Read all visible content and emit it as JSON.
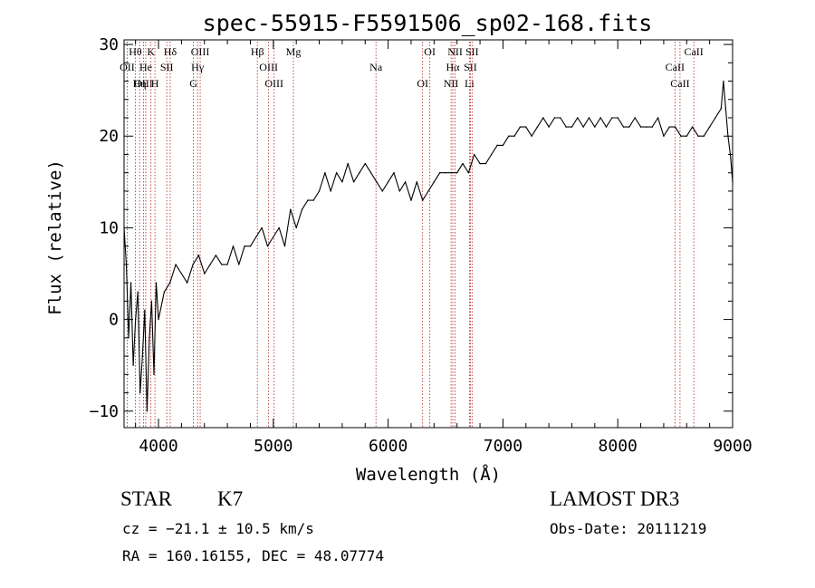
{
  "chart_data": {
    "type": "line",
    "title": "spec-55915-F5591506_sp02-168.fits",
    "xlabel": "Wavelength (Å)",
    "ylabel": "Flux (relative)",
    "xlim": [
      3700,
      9000
    ],
    "ylim": [
      -11.8,
      30.5
    ],
    "xticks": [
      4000,
      5000,
      6000,
      7000,
      8000,
      9000
    ],
    "yticks": [
      -10,
      0,
      10,
      20,
      30
    ],
    "grid": false,
    "series": [
      {
        "name": "flux",
        "color": "#000000",
        "x": [
          3700,
          3720,
          3740,
          3760,
          3780,
          3800,
          3820,
          3840,
          3860,
          3880,
          3900,
          3920,
          3940,
          3960,
          3980,
          4000,
          4050,
          4100,
          4150,
          4200,
          4250,
          4300,
          4350,
          4400,
          4450,
          4500,
          4550,
          4600,
          4650,
          4700,
          4750,
          4800,
          4850,
          4900,
          4950,
          5000,
          5050,
          5100,
          5150,
          5200,
          5250,
          5300,
          5350,
          5400,
          5450,
          5500,
          5550,
          5600,
          5650,
          5700,
          5750,
          5800,
          5850,
          5900,
          5950,
          6000,
          6050,
          6100,
          6150,
          6200,
          6250,
          6300,
          6350,
          6400,
          6450,
          6500,
          6550,
          6600,
          6650,
          6700,
          6750,
          6800,
          6850,
          6900,
          6950,
          7000,
          7050,
          7100,
          7150,
          7200,
          7250,
          7300,
          7350,
          7400,
          7450,
          7500,
          7550,
          7600,
          7650,
          7700,
          7750,
          7800,
          7850,
          7900,
          7950,
          8000,
          8050,
          8100,
          8150,
          8200,
          8250,
          8300,
          8350,
          8400,
          8450,
          8500,
          8550,
          8600,
          8650,
          8700,
          8750,
          8800,
          8850,
          8900,
          8920,
          8940,
          8960,
          8980,
          9000
        ],
        "values": [
          10,
          6,
          -2,
          4,
          -5,
          0,
          3,
          -8,
          -4,
          1,
          -10,
          -2,
          2,
          -6,
          4,
          0,
          3,
          4,
          6,
          5,
          4,
          6,
          7,
          5,
          6,
          7,
          6,
          6,
          8,
          6,
          8,
          8,
          9,
          10,
          8,
          9,
          10,
          8,
          12,
          10,
          12,
          13,
          13,
          14,
          16,
          14,
          16,
          15,
          17,
          15,
          16,
          17,
          16,
          15,
          14,
          15,
          16,
          14,
          15,
          13,
          15,
          13,
          14,
          15,
          16,
          16,
          16,
          16,
          17,
          16,
          18,
          17,
          17,
          18,
          19,
          19,
          20,
          20,
          21,
          21,
          20,
          21,
          22,
          21,
          22,
          22,
          21,
          21,
          22,
          21,
          22,
          21,
          22,
          21,
          22,
          22,
          21,
          21,
          22,
          21,
          21,
          21,
          22,
          20,
          21,
          21,
          20,
          20,
          21,
          20,
          20,
          21,
          22,
          23,
          26,
          23,
          20,
          18,
          15
        ]
      }
    ],
    "annotations": [
      {
        "label": "Hθ",
        "x": 3798
      },
      {
        "label": "OII",
        "x": 3727
      },
      {
        "label": "OIII",
        "x": 3869
      },
      {
        "label": "K",
        "x": 3934
      },
      {
        "label": "He",
        "x": 3889
      },
      {
        "label": "Hη",
        "x": 3835
      },
      {
        "label": "Hδ",
        "x": 4102
      },
      {
        "label": "SII",
        "x": 4072
      },
      {
        "label": "H",
        "x": 3969
      },
      {
        "label": "OIII",
        "x": 4363
      },
      {
        "label": "Hγ",
        "x": 4340
      },
      {
        "label": "G",
        "x": 4304
      },
      {
        "label": "Hβ",
        "x": 4861
      },
      {
        "label": "OIII",
        "x": 4959
      },
      {
        "label": "OIII",
        "x": 5007
      },
      {
        "label": "Mg",
        "x": 5175
      },
      {
        "label": "Na",
        "x": 5894
      },
      {
        "label": "OI",
        "x": 6300
      },
      {
        "label": "OI",
        "x": 6363
      },
      {
        "label": "Hα",
        "x": 6563
      },
      {
        "label": "NII",
        "x": 6548
      },
      {
        "label": "NII",
        "x": 6583
      },
      {
        "label": "SII",
        "x": 6716
      },
      {
        "label": "Li",
        "x": 6708
      },
      {
        "label": "SII",
        "x": 6731
      },
      {
        "label": "CaII",
        "x": 8498
      },
      {
        "label": "CaII",
        "x": 8542
      },
      {
        "label": "CaII",
        "x": 8662
      }
    ]
  },
  "info": {
    "class_label": "STAR",
    "subclass_label": "K7",
    "survey": "LAMOST DR3",
    "cz": "cz = −21.1 ± 10.5 km/s",
    "obs_date": "Obs-Date: 20111219",
    "coords": "RA = 160.16155, DEC =  48.07774"
  }
}
